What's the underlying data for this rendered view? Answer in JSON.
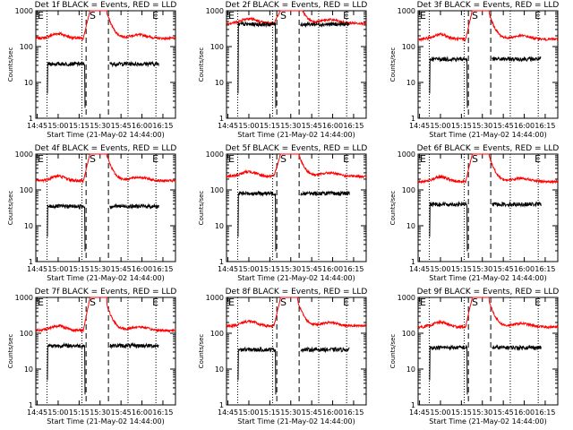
{
  "chart_data": {
    "type": "line",
    "scale": "log",
    "ylim": [
      1,
      1000
    ],
    "ylabel": "Counts/sec",
    "xlabel": "Start Time (21-May-02 14:44:00)",
    "xticks": [
      "14:45",
      "15:00",
      "15:15",
      "15:30",
      "15:45",
      "16:00",
      "16:15"
    ],
    "yticks": [
      "1",
      "10",
      "100",
      "1000"
    ],
    "grid": false,
    "colors": {
      "events": "#000000",
      "lld": "#ff0000"
    },
    "markers": {
      "S_time": "15:25",
      "E_time": "16:10",
      "dotted_lines": [
        "14:52",
        "15:17",
        "15:50",
        "16:10"
      ],
      "dashed_lines": [
        "15:20",
        "15:36"
      ]
    },
    "panels": [
      {
        "title": "Det 1f BLACK = Events, RED = LLD",
        "lld": 170,
        "events": 33,
        "flare_peak": 1100
      },
      {
        "title": "Det 2f BLACK = Events, RED = LLD",
        "lld": 450,
        "events": 420,
        "flare_peak": 1100
      },
      {
        "title": "Det 3f BLACK = Events, RED = LLD",
        "lld": 160,
        "events": 45,
        "flare_peak": 1100
      },
      {
        "title": "Det 4f BLACK = Events, RED = LLD",
        "lld": 180,
        "events": 35,
        "flare_peak": 1100
      },
      {
        "title": "Det 5f BLACK = Events, RED = LLD",
        "lld": 240,
        "events": 80,
        "flare_peak": 1100
      },
      {
        "title": "Det 6f BLACK = Events, RED = LLD",
        "lld": 170,
        "events": 40,
        "flare_peak": 1100
      },
      {
        "title": "Det 7f BLACK = Events, RED = LLD",
        "lld": 120,
        "events": 45,
        "flare_peak": 1100
      },
      {
        "title": "Det 8f BLACK = Events, RED = LLD",
        "lld": 160,
        "events": 35,
        "flare_peak": 1100
      },
      {
        "title": "Det 9f BLACK = Events, RED = LLD",
        "lld": 150,
        "events": 40,
        "flare_peak": 1100
      }
    ]
  }
}
